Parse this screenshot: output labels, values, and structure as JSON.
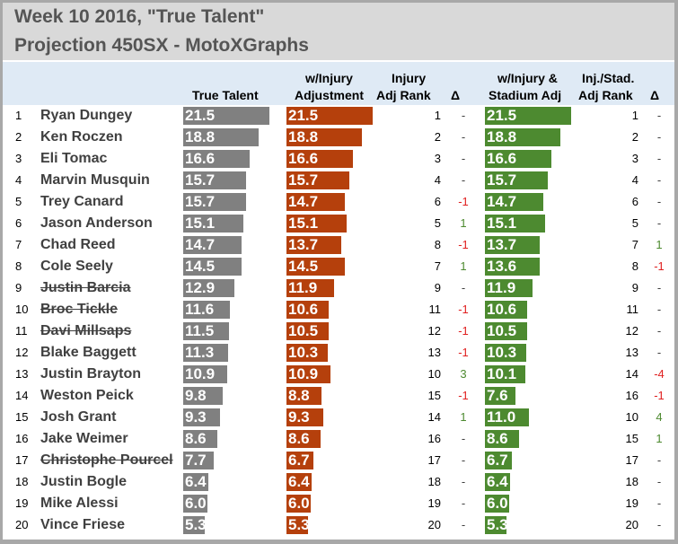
{
  "title": "Week 10 2016, \"True Talent\"",
  "subtitle": "Projection 450SX - MotoXGraphs",
  "headers": {
    "true_talent": "True Talent",
    "inj_adj_1": "w/Injury",
    "inj_adj_2": "Adjustment",
    "inj_rank_1": "Injury",
    "inj_rank_2": "Adj Rank",
    "delta1": "Δ",
    "stad_1": "w/Injury &",
    "stad_2": "Stadium Adj",
    "stad_rank_1": "Inj./Stad.",
    "stad_rank_2": "Adj Rank",
    "delta2": "Δ"
  },
  "colors": {
    "true_talent": "#808080",
    "injury": "#b5400c",
    "stadium": "#4d8a30",
    "delta_pos": "#4d8a30",
    "delta_neg": "#e02020",
    "delta_none": "#404040"
  },
  "chart_data": {
    "type": "table",
    "columns": [
      "Rank",
      "Rider",
      "True Talent",
      "w/Injury Adjustment",
      "Injury Adj Rank",
      "Δ",
      "w/Injury & Stadium Adj",
      "Inj./Stad. Adj Rank",
      "Δ"
    ],
    "rows": [
      {
        "rank": "1",
        "name": "Ryan Dungey",
        "struck": false,
        "tt": "21.5",
        "inj": "21.5",
        "inj_rank": "1",
        "d1": "-",
        "stad": "21.5",
        "stad_rank": "1",
        "d2": "-"
      },
      {
        "rank": "2",
        "name": "Ken Roczen",
        "struck": false,
        "tt": "18.8",
        "inj": "18.8",
        "inj_rank": "2",
        "d1": "-",
        "stad": "18.8",
        "stad_rank": "2",
        "d2": "-"
      },
      {
        "rank": "3",
        "name": "Eli Tomac",
        "struck": false,
        "tt": "16.6",
        "inj": "16.6",
        "inj_rank": "3",
        "d1": "-",
        "stad": "16.6",
        "stad_rank": "3",
        "d2": "-"
      },
      {
        "rank": "4",
        "name": "Marvin Musquin",
        "struck": false,
        "tt": "15.7",
        "inj": "15.7",
        "inj_rank": "4",
        "d1": "-",
        "stad": "15.7",
        "stad_rank": "4",
        "d2": "-"
      },
      {
        "rank": "5",
        "name": "Trey Canard",
        "struck": false,
        "tt": "15.7",
        "inj": "14.7",
        "inj_rank": "6",
        "d1": "-1",
        "stad": "14.7",
        "stad_rank": "6",
        "d2": "-"
      },
      {
        "rank": "6",
        "name": "Jason Anderson",
        "struck": false,
        "tt": "15.1",
        "inj": "15.1",
        "inj_rank": "5",
        "d1": "1",
        "stad": "15.1",
        "stad_rank": "5",
        "d2": "-"
      },
      {
        "rank": "7",
        "name": "Chad Reed",
        "struck": false,
        "tt": "14.7",
        "inj": "13.7",
        "inj_rank": "8",
        "d1": "-1",
        "stad": "13.7",
        "stad_rank": "7",
        "d2": "1"
      },
      {
        "rank": "8",
        "name": "Cole Seely",
        "struck": false,
        "tt": "14.5",
        "inj": "14.5",
        "inj_rank": "7",
        "d1": "1",
        "stad": "13.6",
        "stad_rank": "8",
        "d2": "-1"
      },
      {
        "rank": "9",
        "name": "Justin Barcia",
        "struck": true,
        "tt": "12.9",
        "inj": "11.9",
        "inj_rank": "9",
        "d1": "-",
        "stad": "11.9",
        "stad_rank": "9",
        "d2": "-"
      },
      {
        "rank": "10",
        "name": "Broc Tickle",
        "struck": true,
        "tt": "11.6",
        "inj": "10.6",
        "inj_rank": "11",
        "d1": "-1",
        "stad": "10.6",
        "stad_rank": "11",
        "d2": "-"
      },
      {
        "rank": "11",
        "name": "Davi Millsaps",
        "struck": true,
        "tt": "11.5",
        "inj": "10.5",
        "inj_rank": "12",
        "d1": "-1",
        "stad": "10.5",
        "stad_rank": "12",
        "d2": "-"
      },
      {
        "rank": "12",
        "name": "Blake Baggett",
        "struck": false,
        "tt": "11.3",
        "inj": "10.3",
        "inj_rank": "13",
        "d1": "-1",
        "stad": "10.3",
        "stad_rank": "13",
        "d2": "-"
      },
      {
        "rank": "13",
        "name": "Justin Brayton",
        "struck": false,
        "tt": "10.9",
        "inj": "10.9",
        "inj_rank": "10",
        "d1": "3",
        "stad": "10.1",
        "stad_rank": "14",
        "d2": "-4"
      },
      {
        "rank": "14",
        "name": "Weston Peick",
        "struck": false,
        "tt": "9.8",
        "inj": "8.8",
        "inj_rank": "15",
        "d1": "-1",
        "stad": "7.6",
        "stad_rank": "16",
        "d2": "-1"
      },
      {
        "rank": "15",
        "name": "Josh Grant",
        "struck": false,
        "tt": "9.3",
        "inj": "9.3",
        "inj_rank": "14",
        "d1": "1",
        "stad": "11.0",
        "stad_rank": "10",
        "d2": "4"
      },
      {
        "rank": "16",
        "name": "Jake Weimer",
        "struck": false,
        "tt": "8.6",
        "inj": "8.6",
        "inj_rank": "16",
        "d1": "-",
        "stad": "8.6",
        "stad_rank": "15",
        "d2": "1"
      },
      {
        "rank": "17",
        "name": "Christophe Pourcel",
        "struck": true,
        "tt": "7.7",
        "inj": "6.7",
        "inj_rank": "17",
        "d1": "-",
        "stad": "6.7",
        "stad_rank": "17",
        "d2": "-"
      },
      {
        "rank": "18",
        "name": "Justin Bogle",
        "struck": false,
        "tt": "6.4",
        "inj": "6.4",
        "inj_rank": "18",
        "d1": "-",
        "stad": "6.4",
        "stad_rank": "18",
        "d2": "-"
      },
      {
        "rank": "19",
        "name": "Mike Alessi",
        "struck": false,
        "tt": "6.0",
        "inj": "6.0",
        "inj_rank": "19",
        "d1": "-",
        "stad": "6.0",
        "stad_rank": "19",
        "d2": "-"
      },
      {
        "rank": "20",
        "name": "Vince Friese",
        "struck": false,
        "tt": "5.3",
        "inj": "5.3",
        "inj_rank": "20",
        "d1": "-",
        "stad": "5.3",
        "stad_rank": "20",
        "d2": "-"
      }
    ]
  }
}
